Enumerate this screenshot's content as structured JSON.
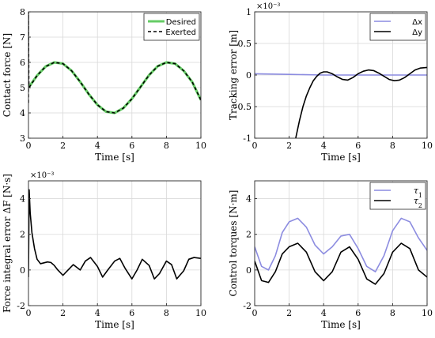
{
  "chart_data": [
    {
      "type": "line",
      "xlabel": "Time [s]",
      "ylabel": "Contact force [N]",
      "xlim": [
        0,
        10
      ],
      "ylim": [
        3,
        8
      ],
      "xticks": [
        "0",
        "2",
        "4",
        "6",
        "8",
        "10"
      ],
      "yticks": [
        "3",
        "4",
        "5",
        "6",
        "7",
        "8"
      ],
      "multiplier": "",
      "grid": true,
      "legend_position": "top-right",
      "series": [
        {
          "name": "Desired",
          "color": "#66cc66",
          "style": "solid",
          "x": [
            0,
            0.5,
            1,
            1.5,
            2,
            2.5,
            3,
            3.5,
            4,
            4.5,
            5,
            5.5,
            6,
            6.5,
            7,
            7.5,
            8,
            8.5,
            9,
            9.5,
            10
          ],
          "y": [
            5.0,
            5.48,
            5.84,
            6.0,
            5.95,
            5.67,
            5.23,
            4.74,
            4.32,
            4.05,
            4.0,
            4.19,
            4.56,
            5.03,
            5.5,
            5.85,
            6.0,
            5.95,
            5.67,
            5.22,
            4.51
          ]
        },
        {
          "name": "Exerted",
          "color": "#000000",
          "style": "dashed",
          "x": [
            0,
            0.001,
            0.002,
            0.01,
            0.02,
            0.03,
            0.05,
            0.5,
            1,
            1.5,
            2,
            2.5,
            3,
            3.5,
            4,
            4.5,
            5,
            5.5,
            6,
            6.5,
            7,
            7.5,
            8,
            8.5,
            9,
            9.5,
            10
          ],
          "y": [
            4.4,
            8.0,
            8.0,
            6.5,
            5.3,
            5.05,
            5.02,
            5.48,
            5.84,
            6.0,
            5.95,
            5.67,
            5.23,
            4.74,
            4.32,
            4.05,
            4.0,
            4.19,
            4.56,
            5.03,
            5.5,
            5.85,
            6.0,
            5.95,
            5.67,
            5.22,
            4.51
          ]
        }
      ]
    },
    {
      "type": "line",
      "xlabel": "Time [s]",
      "ylabel": "Tracking error [m]",
      "xlim": [
        0,
        10
      ],
      "ylim": [
        -1,
        1
      ],
      "xticks": [
        "0",
        "2",
        "4",
        "6",
        "8",
        "10"
      ],
      "yticks": [
        "-1",
        "-0.5",
        "0",
        "0.5",
        "1"
      ],
      "multiplier": "×10⁻³",
      "grid": true,
      "legend_position": "top-right",
      "series": [
        {
          "name": "Δx",
          "color": "#8c8ce0",
          "style": "solid",
          "x": [
            0,
            2,
            4,
            6,
            8,
            10
          ],
          "y": [
            0.02,
            0.01,
            0.0,
            0.0,
            0.0,
            0.0
          ]
        },
        {
          "name": "Δy",
          "color": "#000000",
          "style": "solid",
          "x": [
            2.38,
            2.6,
            2.8,
            3.0,
            3.2,
            3.4,
            3.6,
            3.8,
            4.0,
            4.2,
            4.5,
            4.8,
            5.1,
            5.4,
            5.7,
            6.0,
            6.3,
            6.6,
            6.9,
            7.2,
            7.5,
            7.8,
            8.1,
            8.4,
            8.7,
            9.0,
            9.3,
            9.6,
            10.0
          ],
          "y": [
            -1.0,
            -0.72,
            -0.5,
            -0.33,
            -0.2,
            -0.09,
            -0.02,
            0.03,
            0.05,
            0.05,
            0.02,
            -0.03,
            -0.07,
            -0.08,
            -0.04,
            0.02,
            0.06,
            0.08,
            0.07,
            0.03,
            -0.02,
            -0.07,
            -0.09,
            -0.08,
            -0.04,
            0.02,
            0.08,
            0.11,
            0.12
          ]
        }
      ]
    },
    {
      "type": "line",
      "xlabel": "Time [s]",
      "ylabel": "Force integral error ΔF [N·s]",
      "xlim": [
        0,
        10
      ],
      "ylim": [
        -2,
        5
      ],
      "xticks": [
        "0",
        "2",
        "4",
        "6",
        "8",
        "10"
      ],
      "yticks": [
        "-2",
        "0",
        "2",
        "4"
      ],
      "multiplier": "×10⁻³",
      "grid": true,
      "legend_position": "none",
      "series": [
        {
          "name": "",
          "color": "#000000",
          "style": "solid",
          "x": [
            0,
            0.04,
            0.1,
            0.2,
            0.35,
            0.5,
            0.7,
            0.9,
            1.1,
            1.3,
            1.5,
            1.7,
            2.0,
            2.3,
            2.6,
            3.0,
            3.3,
            3.6,
            4.0,
            4.3,
            4.6,
            5.0,
            5.3,
            5.6,
            6.0,
            6.3,
            6.6,
            7.0,
            7.3,
            7.6,
            8.0,
            8.3,
            8.6,
            9.0,
            9.3,
            9.6,
            10.0
          ],
          "y": [
            -0.4,
            4.5,
            3.2,
            2.1,
            1.2,
            0.6,
            0.35,
            0.4,
            0.45,
            0.42,
            0.25,
            0.0,
            -0.3,
            0.0,
            0.3,
            0.0,
            0.5,
            0.7,
            0.2,
            -0.4,
            0.0,
            0.5,
            0.65,
            0.1,
            -0.5,
            0.0,
            0.6,
            0.25,
            -0.5,
            -0.2,
            0.5,
            0.3,
            -0.5,
            -0.05,
            0.6,
            0.7,
            0.65
          ]
        }
      ]
    },
    {
      "type": "line",
      "xlabel": "Time [s]",
      "ylabel": "Control torques [N·m]",
      "xlim": [
        0,
        10
      ],
      "ylim": [
        -2,
        5
      ],
      "xticks": [
        "0",
        "2",
        "4",
        "6",
        "8",
        "10"
      ],
      "yticks": [
        "-2",
        "0",
        "2",
        "4"
      ],
      "multiplier": "",
      "grid": true,
      "legend_position": "top-right",
      "series": [
        {
          "name": "τ1",
          "color": "#8c8ce0",
          "style": "solid",
          "x": [
            0,
            0.4,
            0.8,
            1.2,
            1.6,
            2.0,
            2.5,
            3.0,
            3.5,
            4.0,
            4.5,
            5.0,
            5.5,
            6.0,
            6.5,
            7.0,
            7.5,
            8.0,
            8.5,
            9.0,
            9.5,
            10.0
          ],
          "y": [
            1.3,
            0.2,
            0.0,
            0.8,
            2.1,
            2.7,
            2.9,
            2.4,
            1.4,
            0.9,
            1.3,
            1.9,
            2.0,
            1.2,
            0.2,
            -0.1,
            0.8,
            2.2,
            2.9,
            2.7,
            1.8,
            1.1
          ]
        },
        {
          "name": "τ2",
          "color": "#000000",
          "style": "solid",
          "x": [
            0,
            0.4,
            0.8,
            1.2,
            1.6,
            2.0,
            2.5,
            3.0,
            3.5,
            4.0,
            4.5,
            5.0,
            5.5,
            6.0,
            6.5,
            7.0,
            7.5,
            8.0,
            8.5,
            9.0,
            9.5,
            10.0
          ],
          "y": [
            0.5,
            -0.6,
            -0.7,
            -0.1,
            0.9,
            1.3,
            1.5,
            1.0,
            -0.1,
            -0.6,
            -0.1,
            1.0,
            1.3,
            0.6,
            -0.5,
            -0.8,
            -0.2,
            1.0,
            1.5,
            1.2,
            0.0,
            -0.4
          ]
        }
      ]
    }
  ]
}
